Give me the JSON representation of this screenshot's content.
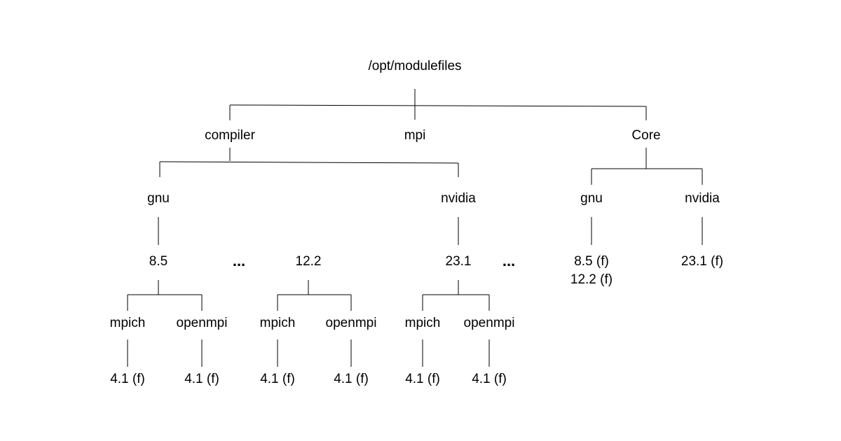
{
  "nodes": [
    {
      "label": "/opt/modulefiles"
    },
    {
      "label": "compiler"
    },
    {
      "label": "mpi"
    },
    {
      "label": "Core"
    },
    {
      "label": "gnu"
    },
    {
      "label": "nvidia"
    },
    {
      "label": "gnu"
    },
    {
      "label": "nvidia"
    },
    {
      "label": "8.5"
    },
    {
      "label": "12.2"
    },
    {
      "label": "23.1"
    },
    {
      "label": "8.5 (f)"
    },
    {
      "label": "12.2 (f)"
    },
    {
      "label": "23.1 (f)"
    },
    {
      "label": "mpich"
    },
    {
      "label": "openmpi"
    },
    {
      "label": "mpich"
    },
    {
      "label": "openmpi"
    },
    {
      "label": "mpich"
    },
    {
      "label": "openmpi"
    },
    {
      "label": "4.1 (f)"
    },
    {
      "label": "4.1 (f)"
    },
    {
      "label": "4.1 (f)"
    },
    {
      "label": "4.1 (f)"
    },
    {
      "label": "4.1 (f)"
    },
    {
      "label": "4.1 (f)"
    }
  ],
  "ellipses": [
    "...",
    "..."
  ]
}
